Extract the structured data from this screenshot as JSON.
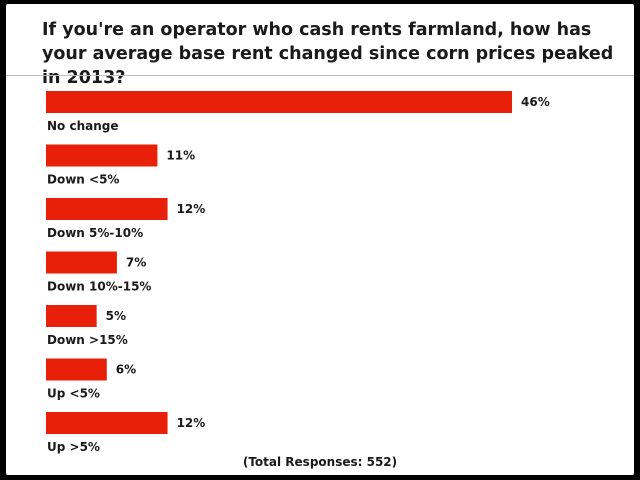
{
  "chart_data": {
    "type": "bar",
    "orientation": "horizontal",
    "title": "If you're an operator who cash rents farmland, how has your average base rent changed since corn prices peaked in 2013?",
    "categories": [
      "No change",
      "Down <5%",
      "Down 5%-10%",
      "Down 10%-15%",
      "Down >15%",
      "Up <5%",
      "Up >5%"
    ],
    "values": [
      46,
      11,
      12,
      7,
      5,
      6,
      12
    ],
    "value_labels": [
      "46%",
      "11%",
      "12%",
      "7%",
      "5%",
      "6%",
      "12%"
    ],
    "unit": "%",
    "xlim": [
      0,
      46
    ],
    "grid": false,
    "legend": "none",
    "footnote": "(Total Responses: 552)",
    "bar_color": "#e8200a"
  }
}
